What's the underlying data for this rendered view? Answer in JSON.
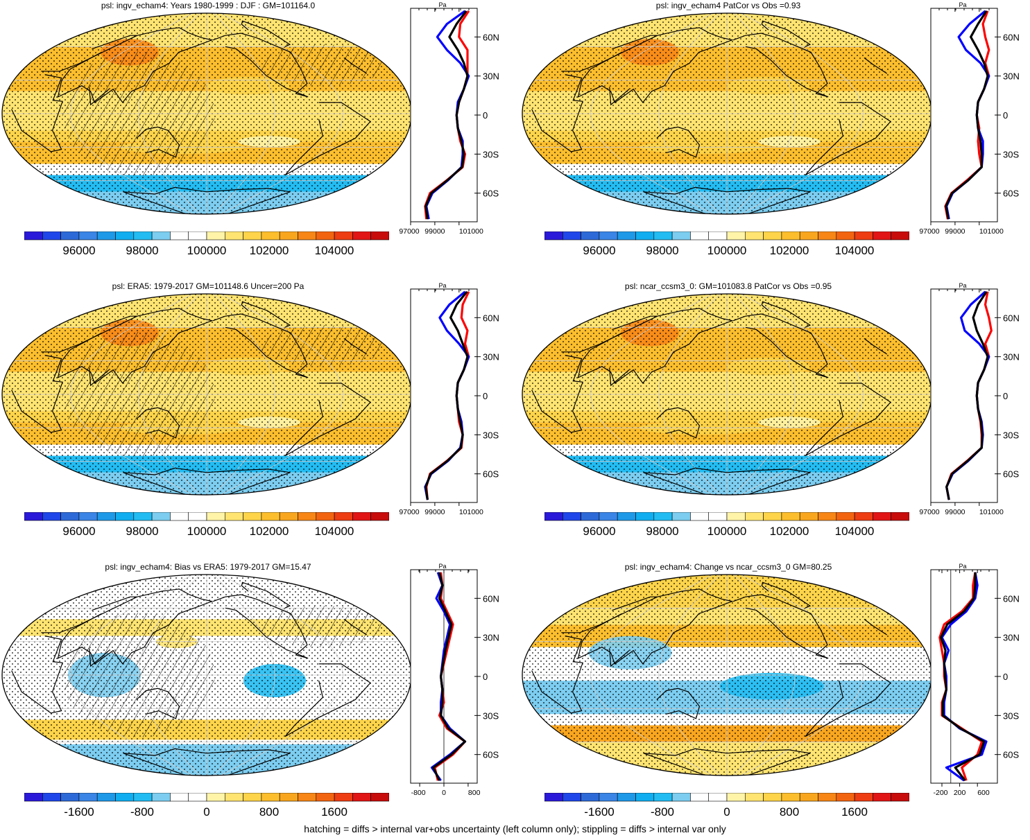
{
  "footnote": "hatching = diffs > internal var+obs uncertainty (left column only); stippling = diffs > internal var only",
  "colors": {
    "palette": [
      "#2b19d9",
      "#1f46e9",
      "#2d6ad8",
      "#3a85e6",
      "#1e99e8",
      "#10aef0",
      "#22bcf2",
      "#7ccdf0",
      "#ffffff",
      "#ffffff",
      "#fff4a8",
      "#ffe471",
      "#fdd44a",
      "#fcbe2d",
      "#f9a61f",
      "#f78616",
      "#f36410",
      "#ee3d12",
      "#e11515",
      "#c80c0c"
    ],
    "ocean_abs": "#fde38a",
    "obs_line": "#ff0000",
    "model_line": "#0000ff",
    "mean_line": "#000000"
  },
  "panels": [
    {
      "id": "p1",
      "title": "psl: ingv_echam4: Years 1980-1999 : DJF : GM=101164.0",
      "kind": "abs",
      "hatched": true,
      "colorbar_labels": [
        "96000",
        "98000",
        "100000",
        "102000",
        "104000"
      ],
      "chart_data": {
        "type": "map+zonal-profile",
        "variable": "psl",
        "colorbar_range": [
          94000,
          106000
        ],
        "zonal_profile": {
          "yticks": [
            "60N",
            "30N",
            "0",
            "30S",
            "60S"
          ],
          "xticks": [
            "97000",
            "99000",
            "101000"
          ],
          "xunit": "Pa",
          "xlim": [
            97000,
            102500
          ],
          "lat": [
            80,
            70,
            60,
            50,
            40,
            30,
            20,
            10,
            0,
            -10,
            -20,
            -30,
            -40,
            -50,
            -60,
            -70,
            -80
          ],
          "series": [
            {
              "values": [
                101800,
                101100,
                101000,
                101700,
                101700,
                101700,
                101400,
                101000,
                100800,
                100900,
                101100,
                101500,
                101300,
                100000,
                98600,
                98200,
                98300
              ]
            },
            {
              "values": [
                101500,
                100000,
                99200,
                100000,
                101100,
                101800,
                101400,
                100900,
                100800,
                100900,
                101300,
                101300,
                101200,
                100100,
                98800,
                98300,
                98500
              ]
            },
            {
              "values": [
                101600,
                100800,
                100200,
                100900,
                101400,
                101700,
                101400,
                101000,
                100800,
                100900,
                101200,
                101400,
                101250,
                100050,
                98700,
                98250,
                98400
              ]
            }
          ]
        }
      }
    },
    {
      "id": "p2",
      "title": "psl: ingv_echam4 PatCor vs Obs =0.93",
      "kind": "abs",
      "hatched": false,
      "colorbar_labels": [
        "96000",
        "98000",
        "100000",
        "102000",
        "104000"
      ],
      "chart_data": {
        "type": "map+zonal-profile",
        "variable": "psl",
        "colorbar_range": [
          94000,
          106000
        ],
        "zonal_profile": {
          "yticks": [
            "60N",
            "30N",
            "0",
            "30S",
            "60S"
          ],
          "xticks": [
            "97000",
            "99000",
            "101000"
          ],
          "xunit": "Pa",
          "xlim": [
            97000,
            102500
          ],
          "lat": [
            80,
            70,
            60,
            50,
            40,
            30,
            20,
            10,
            0,
            -10,
            -20,
            -30,
            -40,
            -50,
            -60,
            -70,
            -80
          ],
          "series": [
            {
              "values": [
                101700,
                101300,
                101500,
                101800,
                101500,
                101800,
                101400,
                100900,
                100800,
                101000,
                100900,
                101000,
                101200,
                100000,
                98700,
                98200,
                98400
              ]
            },
            {
              "values": [
                101500,
                100200,
                99300,
                99900,
                101100,
                101800,
                101400,
                100900,
                100800,
                100900,
                101300,
                101300,
                101200,
                100100,
                98800,
                98300,
                98500
              ]
            },
            {
              "values": [
                101600,
                100900,
                100300,
                100900,
                101400,
                101700,
                101400,
                100900,
                100800,
                100900,
                101100,
                101200,
                101200,
                100100,
                98750,
                98250,
                98450
              ]
            }
          ]
        }
      }
    },
    {
      "id": "p3",
      "title": "psl: ERA5: 1979-2017 GM=101148.6 Uncer=200 Pa",
      "kind": "abs",
      "hatched": true,
      "colorbar_labels": [
        "96000",
        "98000",
        "100000",
        "102000",
        "104000"
      ],
      "chart_data": {
        "type": "map+zonal-profile",
        "variable": "psl",
        "colorbar_range": [
          94000,
          106000
        ],
        "zonal_profile": {
          "yticks": [
            "60N",
            "30N",
            "0",
            "30S",
            "60S"
          ],
          "xticks": [
            "97000",
            "99000",
            "101000"
          ],
          "xunit": "Pa",
          "xlim": [
            97000,
            102500
          ],
          "lat": [
            80,
            70,
            60,
            50,
            40,
            30,
            20,
            10,
            0,
            -10,
            -20,
            -30,
            -40,
            -50,
            -60,
            -70,
            -80
          ],
          "series": [
            {
              "values": [
                101800,
                101300,
                101200,
                101700,
                101500,
                101800,
                101400,
                100900,
                100800,
                100900,
                101000,
                101300,
                101200,
                100000,
                98600,
                98300,
                98400
              ]
            },
            {
              "values": [
                101500,
                100200,
                99400,
                100000,
                101000,
                101800,
                101400,
                100900,
                100800,
                100900,
                101200,
                101300,
                101100,
                100100,
                98700,
                98200,
                98400
              ]
            },
            {
              "values": [
                101650,
                100800,
                100300,
                100900,
                101300,
                101700,
                101400,
                100900,
                100800,
                100900,
                101100,
                101300,
                101150,
                100050,
                98650,
                98250,
                98400
              ]
            }
          ]
        }
      }
    },
    {
      "id": "p4",
      "title": "psl: ncar_ccsm3_0: GM=101083.8 PatCor vs Obs =0.95",
      "kind": "abs",
      "hatched": false,
      "colorbar_labels": [
        "96000",
        "98000",
        "100000",
        "102000",
        "104000"
      ],
      "chart_data": {
        "type": "map+zonal-profile",
        "variable": "psl",
        "colorbar_range": [
          94000,
          106000
        ],
        "zonal_profile": {
          "yticks": [
            "60N",
            "30N",
            "0",
            "30S",
            "60S"
          ],
          "xticks": [
            "97000",
            "99000",
            "101000"
          ],
          "xunit": "Pa",
          "xlim": [
            97000,
            102500
          ],
          "lat": [
            80,
            70,
            60,
            50,
            40,
            30,
            20,
            10,
            0,
            -10,
            -20,
            -30,
            -40,
            -50,
            -60,
            -70,
            -80
          ],
          "series": [
            {
              "values": [
                101700,
                101500,
                101800,
                102000,
                101500,
                101800,
                101400,
                100900,
                100800,
                100900,
                101100,
                101200,
                101200,
                100000,
                98700,
                98300,
                98500
              ]
            },
            {
              "values": [
                101500,
                100300,
                99500,
                99800,
                101000,
                101800,
                101400,
                100900,
                100800,
                100900,
                101200,
                101300,
                101200,
                100100,
                98800,
                98300,
                98500
              ]
            },
            {
              "values": [
                101600,
                100900,
                100500,
                100800,
                101300,
                101700,
                101400,
                100900,
                100800,
                100900,
                101150,
                101250,
                101200,
                100050,
                98750,
                98300,
                98500
              ]
            }
          ]
        }
      }
    },
    {
      "id": "p5",
      "title": "psl: ingv_echam4: Bias vs ERA5: 1979-2017 GM=15.47",
      "kind": "diff",
      "hatched": true,
      "colorbar_labels": [
        "-1600",
        "-800",
        "0",
        "800",
        "1600"
      ],
      "chart_data": {
        "type": "map+zonal-profile",
        "variable": "psl",
        "colorbar_range": [
          -2400,
          2400
        ],
        "zonal_profile": {
          "yticks": [
            "60N",
            "30N",
            "0",
            "30S",
            "60S"
          ],
          "xticks": [
            "-800",
            "0",
            "800"
          ],
          "xunit": "Pa",
          "xlim": [
            -1100,
            1100
          ],
          "lat": [
            80,
            70,
            60,
            50,
            40,
            30,
            20,
            10,
            0,
            -10,
            -20,
            -30,
            -40,
            -50,
            -60,
            -70,
            -80
          ],
          "series": [
            {
              "values": [
                -100,
                -50,
                -100,
                100,
                300,
                200,
                100,
                0,
                -100,
                -50,
                0,
                -150,
                100,
                700,
                300,
                -300,
                -200
              ]
            },
            {
              "values": [
                -200,
                -50,
                -250,
                0,
                200,
                100,
                0,
                -50,
                -100,
                -50,
                -100,
                -100,
                200,
                700,
                200,
                -400,
                -100
              ]
            },
            {
              "values": [
                -150,
                -50,
                -150,
                50,
                250,
                150,
                50,
                -25,
                -100,
                -50,
                -50,
                -100,
                150,
                700,
                250,
                -350,
                -150
              ]
            }
          ]
        }
      }
    },
    {
      "id": "p6",
      "title": "psl: ingv_echam4: Change vs ncar_ccsm3_0 GM=80.25",
      "kind": "diff",
      "hatched": false,
      "colorbar_labels": [
        "-1600",
        "-800",
        "0",
        "800",
        "1600"
      ],
      "chart_data": {
        "type": "map+zonal-profile",
        "variable": "psl",
        "colorbar_range": [
          -2400,
          2400
        ],
        "zonal_profile": {
          "yticks": [
            "60N",
            "30N",
            "0",
            "30S",
            "60S"
          ],
          "xticks": [
            "-200",
            "200",
            "600"
          ],
          "xunit": "Pa",
          "xlim": [
            -450,
            1050
          ],
          "lat": [
            80,
            70,
            60,
            50,
            40,
            30,
            20,
            10,
            0,
            -10,
            -20,
            -30,
            -40,
            -50,
            -60,
            -70,
            -80
          ],
          "series": [
            {
              "values": [
                550,
                500,
                500,
                250,
                -150,
                -250,
                -200,
                -150,
                -150,
                -100,
                -200,
                -200,
                250,
                700,
                600,
                250,
                350
              ]
            },
            {
              "values": [
                550,
                600,
                550,
                350,
                0,
                -200,
                -50,
                -150,
                -100,
                -100,
                -150,
                -150,
                200,
                800,
                700,
                -100,
                300
              ]
            },
            {
              "values": [
                550,
                550,
                520,
                300,
                -80,
                -220,
                -120,
                -150,
                -130,
                -100,
                -180,
                -180,
                220,
                750,
                650,
                100,
                320
              ]
            }
          ]
        }
      }
    }
  ]
}
